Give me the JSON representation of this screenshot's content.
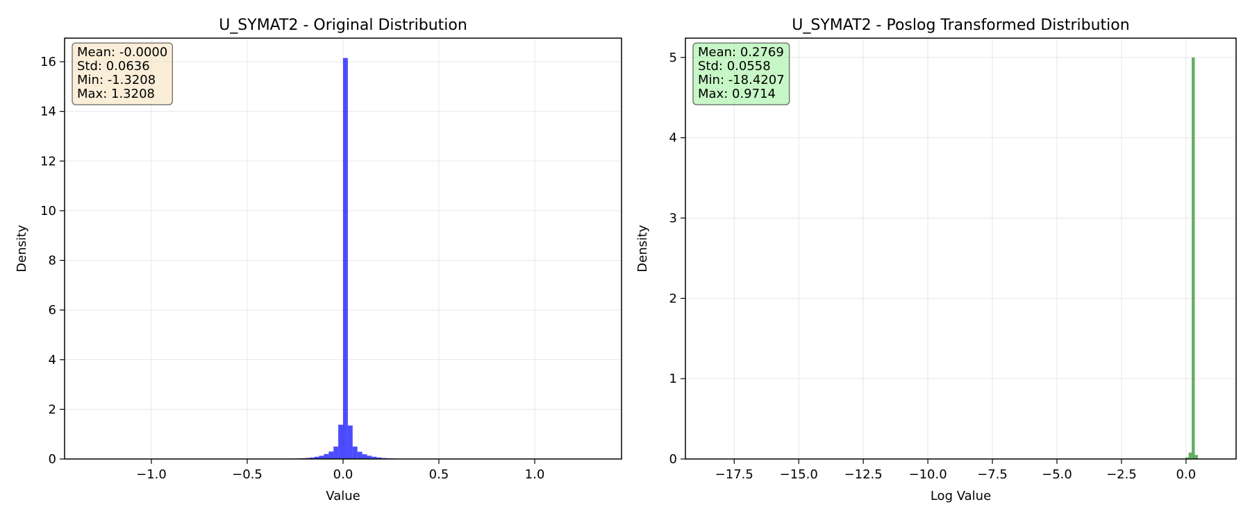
{
  "chart_data": [
    {
      "type": "histogram",
      "title": "U_SYMAT2 - Original Distribution",
      "xlabel": "Value",
      "ylabel": "Density",
      "xlim": [
        -1.4529,
        1.4529
      ],
      "ylim": [
        0,
        16.95
      ],
      "xticks": [
        -1.0,
        -0.5,
        0.0,
        0.5,
        1.0
      ],
      "xtick_labels": [
        "−1.0",
        "−0.5",
        "0.0",
        "0.5",
        "1.0"
      ],
      "yticks": [
        0,
        2,
        4,
        6,
        8,
        10,
        12,
        14,
        16
      ],
      "ytick_labels": [
        "0",
        "2",
        "4",
        "6",
        "8",
        "10",
        "12",
        "14",
        "16"
      ],
      "grid": true,
      "bar_color": "#0000ff",
      "bins": [
        {
          "x0": -0.3,
          "x1": -0.275,
          "value": 0.005
        },
        {
          "x0": -0.275,
          "x1": -0.25,
          "value": 0.01
        },
        {
          "x0": -0.25,
          "x1": -0.225,
          "value": 0.02
        },
        {
          "x0": -0.225,
          "x1": -0.2,
          "value": 0.03
        },
        {
          "x0": -0.2,
          "x1": -0.175,
          "value": 0.04
        },
        {
          "x0": -0.175,
          "x1": -0.15,
          "value": 0.06
        },
        {
          "x0": -0.15,
          "x1": -0.125,
          "value": 0.09
        },
        {
          "x0": -0.125,
          "x1": -0.1,
          "value": 0.13
        },
        {
          "x0": -0.1,
          "x1": -0.075,
          "value": 0.2
        },
        {
          "x0": -0.075,
          "x1": -0.05,
          "value": 0.3
        },
        {
          "x0": -0.05,
          "x1": -0.025,
          "value": 0.5
        },
        {
          "x0": -0.025,
          "x1": 0.0,
          "value": 1.38
        },
        {
          "x0": 0.0,
          "x1": 0.025,
          "value": 16.15
        },
        {
          "x0": 0.025,
          "x1": 0.05,
          "value": 1.35
        },
        {
          "x0": 0.05,
          "x1": 0.075,
          "value": 0.5
        },
        {
          "x0": 0.075,
          "x1": 0.1,
          "value": 0.29
        },
        {
          "x0": 0.1,
          "x1": 0.125,
          "value": 0.19
        },
        {
          "x0": 0.125,
          "x1": 0.15,
          "value": 0.13
        },
        {
          "x0": 0.15,
          "x1": 0.175,
          "value": 0.09
        },
        {
          "x0": 0.175,
          "x1": 0.2,
          "value": 0.06
        },
        {
          "x0": 0.2,
          "x1": 0.225,
          "value": 0.04
        },
        {
          "x0": 0.225,
          "x1": 0.25,
          "value": 0.03
        },
        {
          "x0": 0.25,
          "x1": 0.275,
          "value": 0.02
        },
        {
          "x0": 0.275,
          "x1": 0.3,
          "value": 0.01
        }
      ],
      "stats_box": {
        "lines": [
          "Mean: -0.0000",
          "Std: 0.0636",
          "Min: -1.3208",
          "Max: 1.3208"
        ],
        "placement": "top-left",
        "background": "#f5deb3",
        "background_opacity": 0.5
      }
    },
    {
      "type": "histogram",
      "title": "U_SYMAT2 - Poslog Transformed Distribution",
      "xlabel": "Log Value",
      "ylabel": "Density",
      "xlim": [
        -19.39,
        1.94
      ],
      "ylim": [
        0,
        5.24
      ],
      "xticks": [
        -17.5,
        -15.0,
        -12.5,
        -10.0,
        -7.5,
        -5.0,
        -2.5,
        0.0
      ],
      "xtick_labels": [
        "−17.5",
        "−15.0",
        "−12.5",
        "−10.0",
        "−7.5",
        "−5.0",
        "−2.5",
        "0.0"
      ],
      "yticks": [
        0,
        1,
        2,
        3,
        4,
        5
      ],
      "ytick_labels": [
        "0",
        "1",
        "2",
        "3",
        "4",
        "5"
      ],
      "grid": true,
      "bar_color": "#228b22",
      "bins": [
        {
          "x0": -0.02,
          "x1": 0.1,
          "value": 0.02
        },
        {
          "x0": 0.1,
          "x1": 0.22,
          "value": 0.08
        },
        {
          "x0": 0.22,
          "x1": 0.34,
          "value": 5.0
        },
        {
          "x0": 0.34,
          "x1": 0.46,
          "value": 0.05
        }
      ],
      "stats_box": {
        "lines": [
          "Mean: 0.2769",
          "Std: 0.0558",
          "Min: -18.4207",
          "Max: 0.9714"
        ],
        "placement": "top-left",
        "background": "#90ee90",
        "background_opacity": 0.5
      }
    }
  ]
}
